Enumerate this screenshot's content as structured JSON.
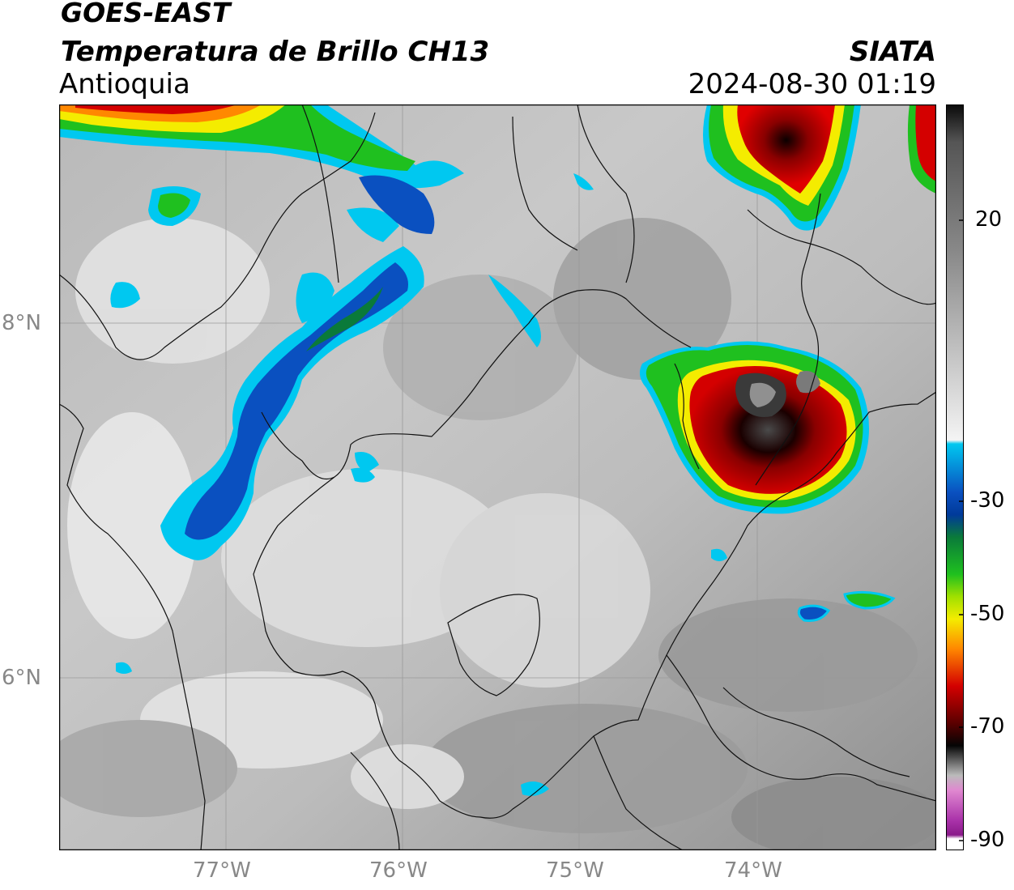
{
  "header": {
    "satellite": "GOES-EAST",
    "product": "Temperatura de Brillo CH13",
    "region": "Antioquia",
    "agency": "SIATA",
    "datetime": "2024-08-30 01:19"
  },
  "axes": {
    "longitude_ticks": [
      "77°W",
      "76°W",
      "75°W",
      "74°W"
    ],
    "latitude_ticks": [
      "8°N",
      "6°N"
    ]
  },
  "colorbar": {
    "ticks": [
      "20",
      "-30",
      "-50",
      "-70",
      "-90"
    ],
    "range": [
      -90,
      35
    ],
    "colors": {
      "warm_gray": "#8a8a8a",
      "light": "#f4f4f4",
      "cyan": "#00c8f0",
      "blue": "#003a9a",
      "green": "#1fc01f",
      "yellow": "#f4ec00",
      "orange": "#ff8800",
      "red": "#d40000",
      "dark_red": "#5a0000",
      "black": "#050505",
      "magenta": "#cc33cc"
    }
  }
}
